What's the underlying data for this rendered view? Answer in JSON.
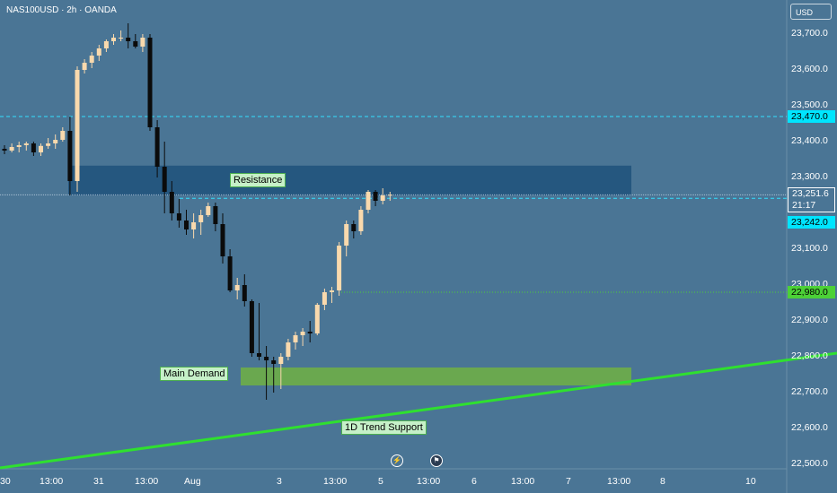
{
  "header": {
    "symbol_label": "NAS100USD · 2h · OANDA"
  },
  "currency_button": "USD",
  "price_axis": {
    "ticks": [
      "23,700.0",
      "23,600.0",
      "23,500.0",
      "23,400.0",
      "23,300.0",
      "23,100.0",
      "23,000.0",
      "22,900.0",
      "22,800.0",
      "22,700.0",
      "22,600.0",
      "22,500.0"
    ]
  },
  "tags": {
    "resistance_line": "23,470.0",
    "current_price": "23,251.6",
    "countdown": "21:17",
    "ask_line": "23,242.0",
    "target_line": "22,980.0"
  },
  "time_axis": {
    "labels": [
      "30",
      "13:00",
      "31",
      "13:00",
      "Aug",
      "3",
      "13:00",
      "5",
      "13:00",
      "6",
      "13:00",
      "7",
      "13:00",
      "8",
      "10"
    ]
  },
  "annotations": {
    "resistance": "Resistance",
    "demand": "Main Demand",
    "trend": "1D Trend Support"
  },
  "icons": {
    "lightning": "lightning-icon",
    "flag": "flag-icon"
  },
  "colors": {
    "background": "#4a7595",
    "bull_candle": "#f9d9ad",
    "bear_candle": "#0b0b0b",
    "resistance_zone": "#23557d",
    "demand_zone": "#6aa84f",
    "trend_line": "#2fe02f",
    "level_line": "#33e0ff",
    "target_line": "#4cd137"
  },
  "chart_data": {
    "type": "candlestick",
    "instrument": "NAS100USD",
    "timeframe": "2h",
    "ylim": [
      22500,
      23740
    ],
    "levels": [
      23470,
      23242,
      22980
    ],
    "current_price": 23251.6,
    "zones": [
      {
        "name": "Resistance",
        "from": 23250,
        "to": 23333
      },
      {
        "name": "Main Demand",
        "from": 22720,
        "to": 22770
      }
    ],
    "trend_support": [
      [
        0,
        22490
      ],
      [
        932,
        22810
      ]
    ],
    "candles": [
      [
        23380,
        23390,
        23365,
        23375
      ],
      [
        23375,
        23395,
        23370,
        23385
      ],
      [
        23385,
        23400,
        23370,
        23390
      ],
      [
        23390,
        23400,
        23375,
        23395
      ],
      [
        23395,
        23400,
        23360,
        23370
      ],
      [
        23370,
        23395,
        23360,
        23388
      ],
      [
        23388,
        23410,
        23380,
        23395
      ],
      [
        23395,
        23420,
        23380,
        23405
      ],
      [
        23405,
        23440,
        23400,
        23430
      ],
      [
        23430,
        23470,
        23250,
        23290
      ],
      [
        23290,
        23610,
        23260,
        23600
      ],
      [
        23600,
        23630,
        23590,
        23620
      ],
      [
        23620,
        23650,
        23605,
        23640
      ],
      [
        23640,
        23670,
        23625,
        23660
      ],
      [
        23660,
        23685,
        23650,
        23680
      ],
      [
        23680,
        23700,
        23670,
        23690
      ],
      [
        23690,
        23710,
        23680,
        23690
      ],
      [
        23690,
        23730,
        23660,
        23680
      ],
      [
        23680,
        23700,
        23660,
        23665
      ],
      [
        23665,
        23700,
        23650,
        23690
      ],
      [
        23690,
        23700,
        23430,
        23440
      ],
      [
        23440,
        23460,
        23300,
        23330
      ],
      [
        23330,
        23400,
        23200,
        23260
      ],
      [
        23260,
        23290,
        23180,
        23200
      ],
      [
        23200,
        23240,
        23160,
        23180
      ],
      [
        23180,
        23210,
        23140,
        23155
      ],
      [
        23155,
        23200,
        23130,
        23175
      ],
      [
        23175,
        23210,
        23140,
        23195
      ],
      [
        23195,
        23230,
        23190,
        23220
      ],
      [
        23220,
        23230,
        23150,
        23170
      ],
      [
        23170,
        23200,
        23060,
        23080
      ],
      [
        23080,
        23100,
        22980,
        22985
      ],
      [
        22985,
        23020,
        22960,
        23000
      ],
      [
        23000,
        23030,
        22940,
        22955
      ],
      [
        22955,
        22960,
        22800,
        22810
      ],
      [
        22810,
        22950,
        22790,
        22800
      ],
      [
        22800,
        22830,
        22680,
        22790
      ],
      [
        22790,
        22800,
        22700,
        22780
      ],
      [
        22780,
        22810,
        22710,
        22800
      ],
      [
        22800,
        22850,
        22790,
        22840
      ],
      [
        22840,
        22870,
        22820,
        22860
      ],
      [
        22860,
        22880,
        22830,
        22870
      ],
      [
        22870,
        22900,
        22840,
        22865
      ],
      [
        22865,
        22950,
        22860,
        22945
      ],
      [
        22945,
        22990,
        22930,
        22980
      ],
      [
        22980,
        22995,
        22950,
        22985
      ],
      [
        22985,
        23120,
        22970,
        23110
      ],
      [
        23110,
        23180,
        23080,
        23170
      ],
      [
        23170,
        23180,
        23130,
        23150
      ],
      [
        23150,
        23220,
        23140,
        23210
      ],
      [
        23210,
        23265,
        23200,
        23260
      ],
      [
        23260,
        23265,
        23220,
        23235
      ],
      [
        23235,
        23270,
        23225,
        23250
      ],
      [
        23250,
        23260,
        23235,
        23252
      ]
    ]
  }
}
